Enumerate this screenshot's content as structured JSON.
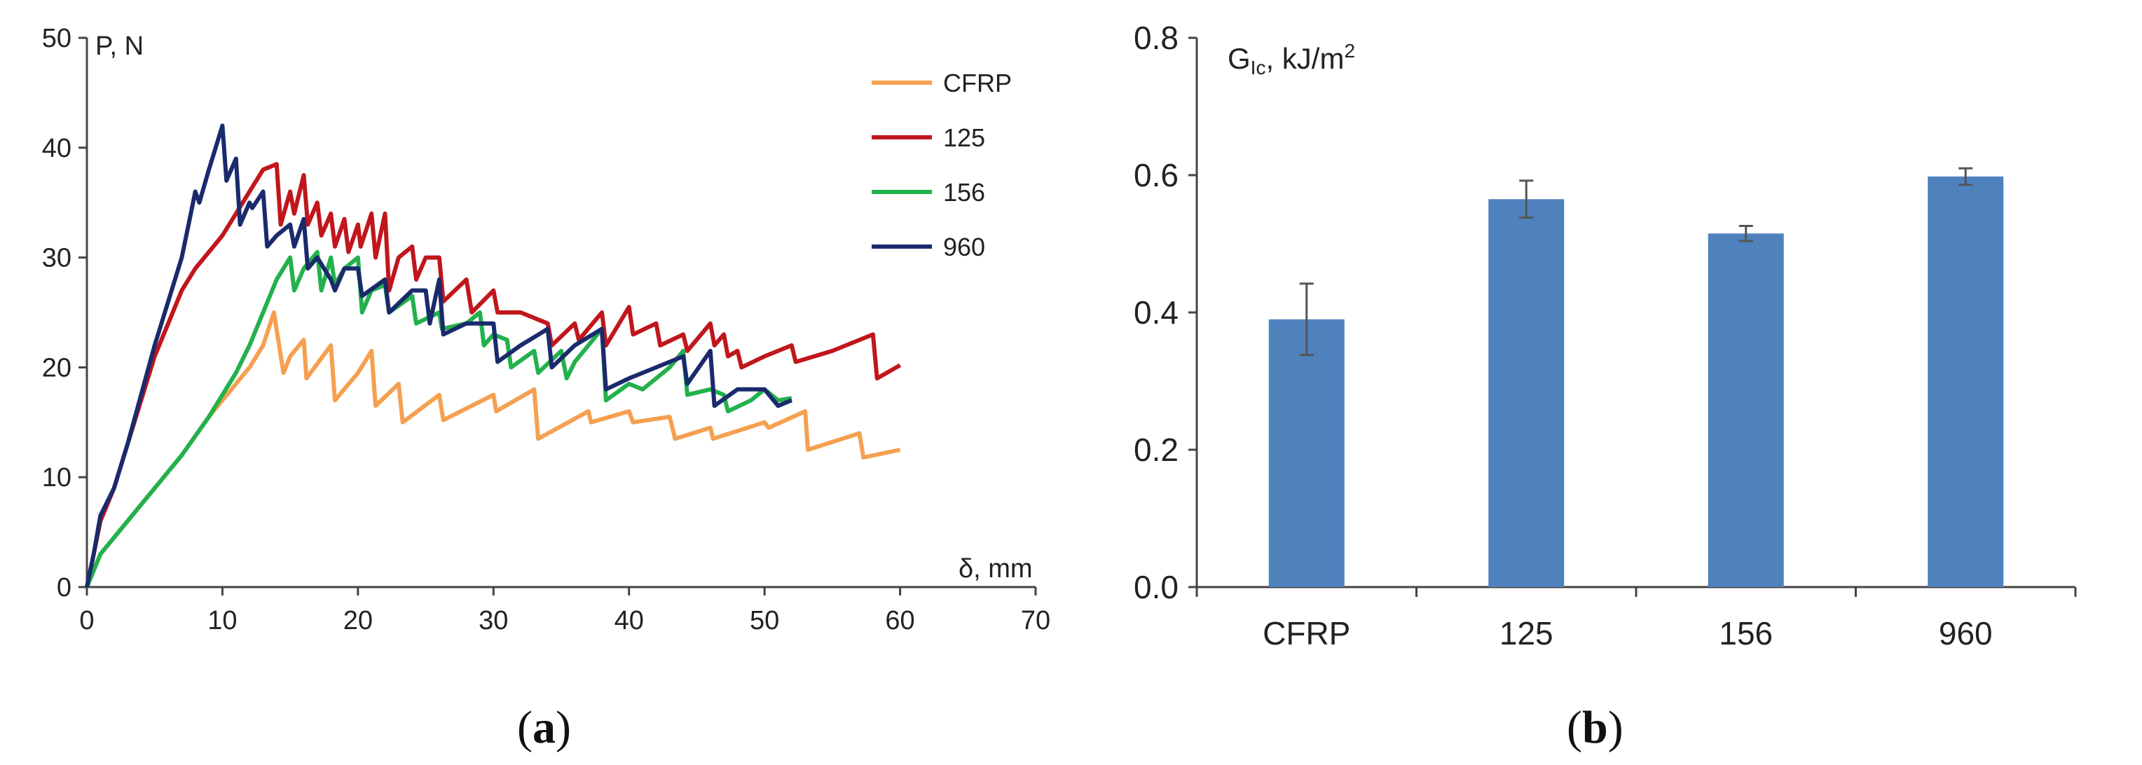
{
  "chart_data": [
    {
      "type": "line",
      "caption_prefix": "(",
      "caption_letter": "a",
      "caption_suffix": ")",
      "ylabel": "P, N",
      "xlabel": "δ, mm",
      "xlim": [
        0,
        70
      ],
      "ylim": [
        0,
        50
      ],
      "xticks": [
        0,
        10,
        20,
        30,
        40,
        50,
        60,
        70
      ],
      "yticks": [
        0,
        10,
        20,
        30,
        40,
        50
      ],
      "series": [
        {
          "name": "CFRP",
          "color": "#f5a050",
          "points": [
            [
              0,
              0
            ],
            [
              1,
              3
            ],
            [
              3,
              6
            ],
            [
              5,
              9
            ],
            [
              7,
              12
            ],
            [
              9,
              15.5
            ],
            [
              11,
              18.5
            ],
            [
              12,
              20
            ],
            [
              13,
              22
            ],
            [
              13.8,
              25
            ],
            [
              14.5,
              19.5
            ],
            [
              15,
              21
            ],
            [
              16,
              22.5
            ],
            [
              16.2,
              19
            ],
            [
              18,
              22
            ],
            [
              18.3,
              17
            ],
            [
              20,
              19.5
            ],
            [
              21,
              21.5
            ],
            [
              21.3,
              16.5
            ],
            [
              23,
              18.5
            ],
            [
              23.3,
              15
            ],
            [
              26,
              17.5
            ],
            [
              26.3,
              15.2
            ],
            [
              30,
              17.5
            ],
            [
              30.2,
              16
            ],
            [
              33,
              18
            ],
            [
              33.3,
              13.5
            ],
            [
              37,
              16
            ],
            [
              37.2,
              15
            ],
            [
              40,
              16
            ],
            [
              40.3,
              15
            ],
            [
              43,
              15.5
            ],
            [
              43.4,
              13.5
            ],
            [
              46,
              14.5
            ],
            [
              46.2,
              13.5
            ],
            [
              50,
              15
            ],
            [
              50.3,
              14.5
            ],
            [
              53,
              16
            ],
            [
              53.2,
              12.5
            ],
            [
              57,
              14
            ],
            [
              57.3,
              11.8
            ],
            [
              60,
              12.5
            ]
          ]
        },
        {
          "name": "125",
          "color": "#c0161c",
          "points": [
            [
              0,
              0
            ],
            [
              0.5,
              3
            ],
            [
              1,
              6
            ],
            [
              2,
              9
            ],
            [
              3,
              13
            ],
            [
              4,
              17
            ],
            [
              5,
              21
            ],
            [
              6,
              24
            ],
            [
              7,
              27
            ],
            [
              8,
              29
            ],
            [
              9,
              30.5
            ],
            [
              10,
              32
            ],
            [
              11,
              34
            ],
            [
              12,
              36
            ],
            [
              13,
              38
            ],
            [
              14,
              38.5
            ],
            [
              14.3,
              33
            ],
            [
              15,
              36
            ],
            [
              15.3,
              34
            ],
            [
              16,
              37.5
            ],
            [
              16.3,
              33
            ],
            [
              17,
              35
            ],
            [
              17.3,
              32
            ],
            [
              18,
              34
            ],
            [
              18.3,
              31
            ],
            [
              19,
              33.5
            ],
            [
              19.3,
              30.5
            ],
            [
              20,
              33
            ],
            [
              20.2,
              31
            ],
            [
              21,
              34
            ],
            [
              21.3,
              30
            ],
            [
              22,
              34
            ],
            [
              22.3,
              27
            ],
            [
              23,
              30
            ],
            [
              24,
              31
            ],
            [
              24.3,
              28
            ],
            [
              25,
              30
            ],
            [
              26,
              30
            ],
            [
              26.3,
              26
            ],
            [
              28,
              28
            ],
            [
              28.4,
              25
            ],
            [
              30,
              27
            ],
            [
              30.3,
              25
            ],
            [
              32,
              25
            ],
            [
              34,
              24
            ],
            [
              34.3,
              22
            ],
            [
              36,
              24
            ],
            [
              36.3,
              22.5
            ],
            [
              38,
              25
            ],
            [
              38.3,
              22
            ],
            [
              40,
              25.5
            ],
            [
              40.3,
              23
            ],
            [
              42,
              24
            ],
            [
              42.3,
              22
            ],
            [
              44,
              23
            ],
            [
              44.3,
              21.5
            ],
            [
              46,
              24
            ],
            [
              46.3,
              22
            ],
            [
              47,
              23
            ],
            [
              47.3,
              21
            ],
            [
              48,
              21.5
            ],
            [
              48.3,
              20
            ],
            [
              50,
              21
            ],
            [
              52,
              22
            ],
            [
              52.3,
              20.5
            ],
            [
              55,
              21.5
            ],
            [
              58,
              23
            ],
            [
              58.3,
              19
            ],
            [
              60,
              20.2
            ]
          ]
        },
        {
          "name": "156",
          "color": "#22b14c",
          "points": [
            [
              0,
              0
            ],
            [
              1,
              3
            ],
            [
              3,
              6
            ],
            [
              5,
              9
            ],
            [
              7,
              12
            ],
            [
              9,
              15.5
            ],
            [
              11,
              19.5
            ],
            [
              12,
              22
            ],
            [
              13,
              25
            ],
            [
              14,
              28
            ],
            [
              15,
              30
            ],
            [
              15.3,
              27
            ],
            [
              16,
              29
            ],
            [
              17,
              30.5
            ],
            [
              17.3,
              27
            ],
            [
              18,
              30
            ],
            [
              18.3,
              27.5
            ],
            [
              19,
              29
            ],
            [
              20,
              30
            ],
            [
              20.3,
              25
            ],
            [
              21,
              27
            ],
            [
              22,
              27.5
            ],
            [
              22.3,
              25
            ],
            [
              24,
              26.5
            ],
            [
              24.3,
              24
            ],
            [
              26,
              25
            ],
            [
              26.2,
              23.5
            ],
            [
              28,
              24
            ],
            [
              29,
              25
            ],
            [
              29.3,
              22
            ],
            [
              30,
              23
            ],
            [
              31,
              22.5
            ],
            [
              31.3,
              20
            ],
            [
              33,
              21.5
            ],
            [
              33.3,
              19.5
            ],
            [
              35,
              21.5
            ],
            [
              35.4,
              19
            ],
            [
              36,
              20.5
            ],
            [
              38,
              23.5
            ],
            [
              38.3,
              17
            ],
            [
              40,
              18.5
            ],
            [
              41,
              18
            ],
            [
              43,
              20
            ],
            [
              44,
              21.5
            ],
            [
              44.3,
              17.5
            ],
            [
              46,
              18
            ],
            [
              47,
              17.5
            ],
            [
              47.3,
              16
            ],
            [
              49,
              17
            ],
            [
              50,
              18
            ],
            [
              51,
              17
            ],
            [
              52,
              17.2
            ]
          ]
        },
        {
          "name": "960",
          "color": "#1a2a6c",
          "points": [
            [
              0,
              0
            ],
            [
              0.5,
              3
            ],
            [
              1,
              6.5
            ],
            [
              2,
              9
            ],
            [
              3,
              13
            ],
            [
              4,
              17.5
            ],
            [
              5,
              22
            ],
            [
              6,
              26
            ],
            [
              7,
              30
            ],
            [
              7.5,
              33
            ],
            [
              8,
              36
            ],
            [
              8.3,
              35
            ],
            [
              9,
              38
            ],
            [
              9.5,
              40
            ],
            [
              10,
              42
            ],
            [
              10.3,
              37
            ],
            [
              11,
              39
            ],
            [
              11.3,
              33
            ],
            [
              12,
              35
            ],
            [
              12.2,
              34.5
            ],
            [
              13,
              36
            ],
            [
              13.3,
              31
            ],
            [
              14,
              32
            ],
            [
              15,
              33
            ],
            [
              15.3,
              31
            ],
            [
              16,
              33.5
            ],
            [
              16.3,
              29
            ],
            [
              17,
              30
            ],
            [
              18,
              28
            ],
            [
              18.3,
              27
            ],
            [
              19,
              29
            ],
            [
              20,
              29
            ],
            [
              20.3,
              26.5
            ],
            [
              22,
              28
            ],
            [
              22.3,
              25
            ],
            [
              24,
              27
            ],
            [
              25,
              27
            ],
            [
              25.3,
              24
            ],
            [
              26,
              28
            ],
            [
              26.3,
              23
            ],
            [
              28,
              24
            ],
            [
              30,
              24
            ],
            [
              30.3,
              20.5
            ],
            [
              32,
              22
            ],
            [
              34,
              23.5
            ],
            [
              34.3,
              20
            ],
            [
              36,
              22
            ],
            [
              38,
              23.5
            ],
            [
              38.3,
              18
            ],
            [
              40,
              19
            ],
            [
              42,
              20
            ],
            [
              44,
              21
            ],
            [
              44.3,
              18.5
            ],
            [
              46,
              21.5
            ],
            [
              46.3,
              16.5
            ],
            [
              48,
              18
            ],
            [
              50,
              18
            ],
            [
              51,
              16.5
            ],
            [
              52,
              17
            ]
          ]
        }
      ]
    },
    {
      "type": "bar",
      "caption_prefix": "(",
      "caption_letter": "b",
      "caption_suffix": ")",
      "ylabel_main": "G",
      "ylabel_sub": "Ic",
      "ylabel_unit": ", kJ/m",
      "ylabel_sup": "2",
      "ylim": [
        0,
        0.8
      ],
      "yticks": [
        "0.0",
        "0.2",
        "0.4",
        "0.6",
        "0.8"
      ],
      "categories": [
        "CFRP",
        "125",
        "156",
        "960"
      ],
      "values": [
        0.39,
        0.565,
        0.515,
        0.598
      ],
      "errors": [
        0.052,
        0.027,
        0.011,
        0.012
      ],
      "bar_color": "#4f81bd"
    }
  ]
}
